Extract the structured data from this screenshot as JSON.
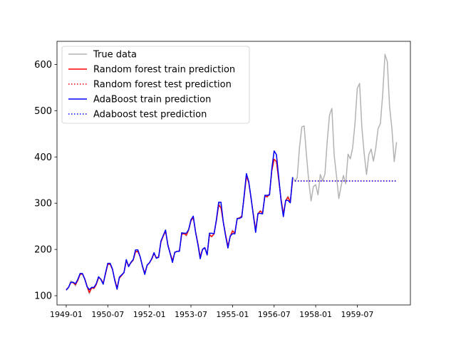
{
  "chart_data": {
    "type": "line",
    "title": "",
    "xlabel": "",
    "ylabel": "",
    "x_start": "1949-01",
    "x_step": "1 month",
    "xticks": [
      "1949-01",
      "1950-07",
      "1952-01",
      "1953-07",
      "1955-01",
      "1956-07",
      "1958-01",
      "1959-07"
    ],
    "yticks": [
      100,
      200,
      300,
      400,
      500,
      600
    ],
    "ylim": [
      80,
      650
    ],
    "grid": false,
    "legend": {
      "position": "top-left",
      "entries": [
        "True data",
        "Random forest train prediction",
        "Random forest test prediction",
        "AdaBoost train prediction",
        "Adaboost test prediction"
      ]
    },
    "series": [
      {
        "name": "True data",
        "color": "#b3b3b3",
        "style": "solid",
        "start": "1949-01",
        "values": [
          112,
          118,
          132,
          129,
          121,
          135,
          148,
          148,
          136,
          119,
          104,
          118,
          115,
          126,
          141,
          135,
          125,
          149,
          170,
          170,
          158,
          133,
          114,
          140,
          145,
          150,
          178,
          163,
          172,
          178,
          199,
          199,
          184,
          162,
          146,
          166,
          171,
          180,
          193,
          181,
          183,
          218,
          230,
          242,
          209,
          191,
          172,
          194,
          196,
          196,
          236,
          235,
          229,
          243,
          264,
          272,
          237,
          211,
          180,
          201,
          204,
          188,
          235,
          227,
          234,
          264,
          302,
          293,
          259,
          229,
          203,
          229,
          242,
          233,
          267,
          269,
          270,
          315,
          364,
          347,
          312,
          274,
          237,
          278,
          284,
          277,
          317,
          313,
          318,
          374,
          413,
          405,
          355,
          306,
          271,
          306,
          315,
          301,
          356,
          348,
          355,
          422,
          465,
          467,
          404,
          347,
          305,
          336,
          340,
          318,
          362,
          348,
          363,
          435,
          491,
          505,
          404,
          359,
          310,
          337,
          360,
          342,
          406,
          396,
          420,
          472,
          548,
          559,
          463,
          407,
          362,
          405,
          417,
          391,
          419,
          461,
          472,
          535,
          622,
          606,
          508,
          461,
          390,
          432
        ]
      },
      {
        "name": "Random forest train prediction",
        "color": "#ff0000",
        "style": "solid",
        "start": "1949-01",
        "values": [
          113,
          118,
          129,
          128,
          124,
          133,
          146,
          147,
          137,
          121,
          107,
          117,
          116,
          124,
          139,
          136,
          127,
          147,
          168,
          168,
          157,
          135,
          117,
          138,
          144,
          150,
          175,
          165,
          171,
          177,
          195,
          196,
          184,
          164,
          149,
          165,
          171,
          179,
          191,
          182,
          184,
          216,
          229,
          239,
          210,
          192,
          176,
          193,
          196,
          197,
          233,
          234,
          231,
          242,
          262,
          269,
          238,
          213,
          184,
          200,
          203,
          190,
          231,
          228,
          234,
          262,
          296,
          290,
          259,
          232,
          207,
          228,
          240,
          235,
          266,
          268,
          272,
          313,
          358,
          345,
          311,
          276,
          242,
          276,
          283,
          279,
          315,
          314,
          320,
          370,
          395,
          390,
          350,
          309,
          277,
          305,
          313,
          303,
          350
        ]
      },
      {
        "name": "Random forest test prediction",
        "color": "#ff0000",
        "style": "dotted",
        "start": "1957-04",
        "values": [
          348,
          348,
          348,
          348,
          348,
          348,
          348,
          348,
          348,
          348,
          348,
          348,
          348,
          348,
          348,
          348,
          348,
          348,
          348,
          348,
          348,
          348,
          348,
          348,
          348,
          348,
          348,
          348,
          348,
          348,
          348,
          348,
          348,
          348,
          348,
          348,
          348,
          348,
          348,
          348,
          348,
          348,
          348,
          348,
          348
        ]
      },
      {
        "name": "AdaBoost train prediction",
        "color": "#0000ff",
        "style": "solid",
        "start": "1949-01",
        "values": [
          112,
          118,
          129,
          129,
          126,
          135,
          148,
          148,
          136,
          120,
          113,
          118,
          118,
          126,
          141,
          135,
          125,
          149,
          170,
          170,
          158,
          133,
          114,
          140,
          145,
          150,
          178,
          163,
          172,
          178,
          199,
          199,
          184,
          164,
          146,
          166,
          171,
          180,
          193,
          181,
          183,
          218,
          230,
          242,
          209,
          191,
          172,
          194,
          196,
          196,
          236,
          235,
          235,
          243,
          264,
          272,
          237,
          211,
          180,
          200,
          204,
          188,
          235,
          235,
          234,
          264,
          302,
          302,
          259,
          229,
          203,
          229,
          234,
          234,
          267,
          267,
          270,
          315,
          364,
          347,
          312,
          274,
          237,
          278,
          278,
          277,
          317,
          317,
          318,
          374,
          413,
          405,
          355,
          306,
          271,
          306,
          306,
          301,
          356
        ]
      },
      {
        "name": "Adaboost test prediction",
        "color": "#0000ff",
        "style": "dotted",
        "start": "1957-04",
        "values": [
          348,
          348,
          348,
          348,
          348,
          348,
          348,
          348,
          348,
          348,
          348,
          348,
          348,
          348,
          348,
          348,
          348,
          348,
          348,
          348,
          348,
          348,
          348,
          348,
          348,
          348,
          348,
          348,
          348,
          348,
          348,
          348,
          348,
          348,
          348,
          348,
          348,
          348,
          348,
          348,
          348,
          348,
          348,
          348,
          348
        ]
      }
    ]
  }
}
